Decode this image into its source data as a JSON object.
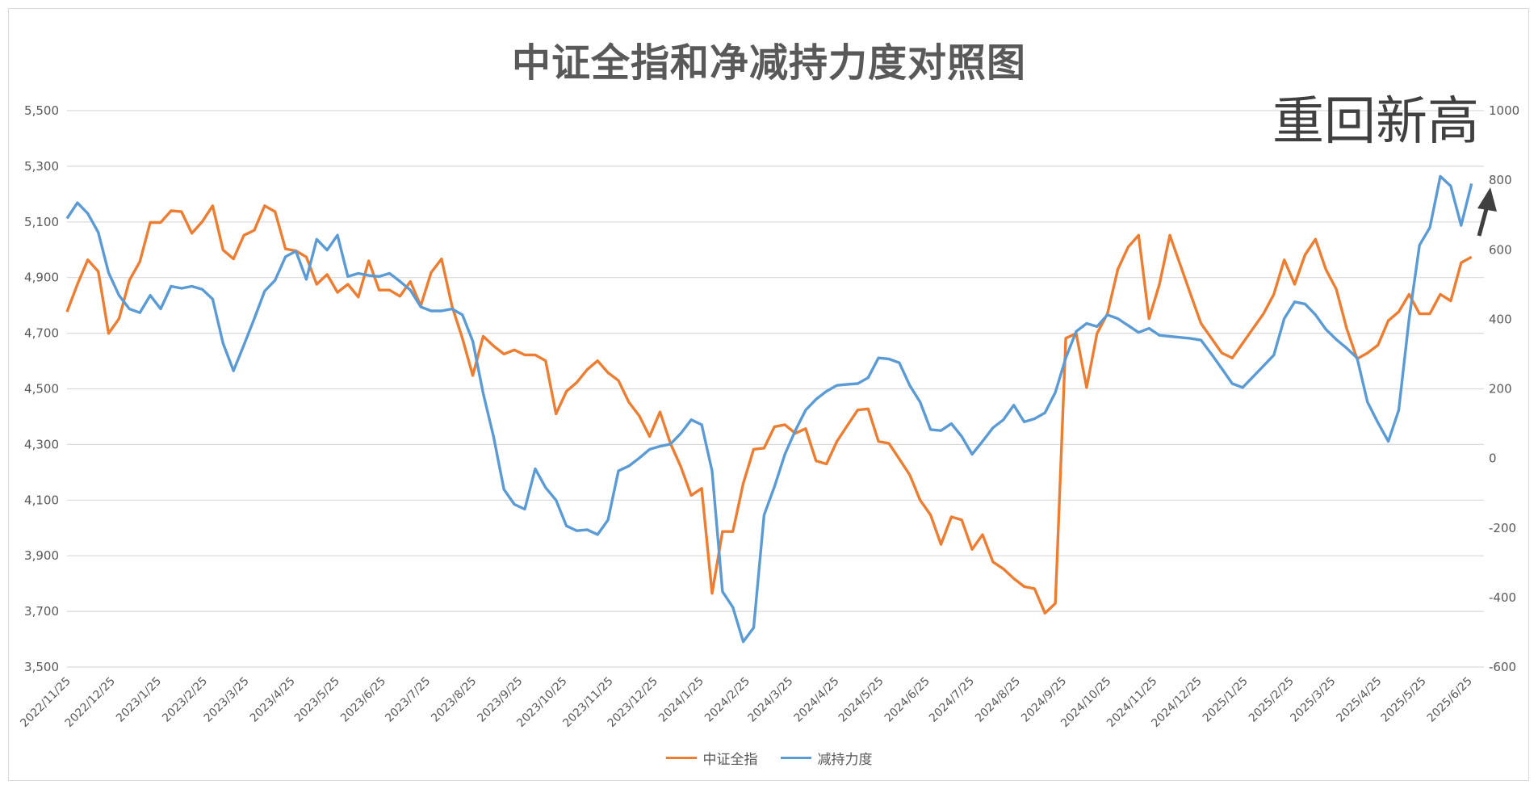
{
  "chart_data": {
    "type": "line",
    "title": "中证全指和净减持力度对照图",
    "annotation": "重回新高",
    "grid": true,
    "legend_position": "bottom",
    "y_left": {
      "ylim": [
        3500,
        5500
      ],
      "ticks": [
        "3,500",
        "3,700",
        "3,900",
        "4,100",
        "4,300",
        "4,500",
        "4,700",
        "4,900",
        "5,100",
        "5,300",
        "5,500"
      ]
    },
    "y_right": {
      "ylim": [
        -600,
        1000
      ],
      "ticks": [
        "-600",
        "-400",
        "-200",
        "0",
        "200",
        "400",
        "600",
        "800",
        "1000"
      ]
    },
    "xlim": [
      "2022/11/25",
      "2025/7/1"
    ],
    "x_tick_labels": [
      "2022/11/25",
      "2022/12/25",
      "2023/1/25",
      "2023/2/25",
      "2023/3/25",
      "2023/4/25",
      "2023/5/25",
      "2023/6/25",
      "2023/7/25",
      "2023/8/25",
      "2023/9/25",
      "2023/10/25",
      "2023/11/25",
      "2023/12/25",
      "2024/1/25",
      "2024/2/25",
      "2024/3/25",
      "2024/4/25",
      "2024/5/25",
      "2024/6/25",
      "2024/7/25",
      "2024/8/25",
      "2024/9/25",
      "2024/10/25",
      "2024/11/25",
      "2024/12/25",
      "2025/1/25",
      "2025/2/25",
      "2025/3/25",
      "2025/4/25",
      "2025/5/25",
      "2025/6/25"
    ],
    "x": [
      "2022/11/25",
      "2022/12/2",
      "2022/12/9",
      "2022/12/16",
      "2022/12/23",
      "2022/12/30",
      "2023/1/6",
      "2023/1/13",
      "2023/1/20",
      "2023/1/27",
      "2023/2/3",
      "2023/2/10",
      "2023/2/17",
      "2023/2/24",
      "2023/3/3",
      "2023/3/10",
      "2023/3/17",
      "2023/3/24",
      "2023/3/31",
      "2023/4/7",
      "2023/4/14",
      "2023/4/21",
      "2023/4/28",
      "2023/5/5",
      "2023/5/12",
      "2023/5/19",
      "2023/5/26",
      "2023/6/2",
      "2023/6/9",
      "2023/6/16",
      "2023/6/23",
      "2023/6/30",
      "2023/7/7",
      "2023/7/14",
      "2023/7/21",
      "2023/7/28",
      "2023/8/4",
      "2023/8/11",
      "2023/8/18",
      "2023/8/25",
      "2023/9/1",
      "2023/9/8",
      "2023/9/15",
      "2023/9/22",
      "2023/9/29",
      "2023/10/6",
      "2023/10/13",
      "2023/10/20",
      "2023/10/27",
      "2023/11/3",
      "2023/11/10",
      "2023/11/17",
      "2023/11/24",
      "2023/12/1",
      "2023/12/8",
      "2023/12/15",
      "2023/12/22",
      "2023/12/29",
      "2024/1/5",
      "2024/1/12",
      "2024/1/19",
      "2024/1/26",
      "2024/2/2",
      "2024/2/9",
      "2024/2/16",
      "2024/2/23",
      "2024/3/1",
      "2024/3/8",
      "2024/3/15",
      "2024/3/22",
      "2024/3/29",
      "2024/4/5",
      "2024/4/12",
      "2024/4/19",
      "2024/4/26",
      "2024/5/3",
      "2024/5/10",
      "2024/5/17",
      "2024/5/24",
      "2024/5/31",
      "2024/6/7",
      "2024/6/14",
      "2024/6/21",
      "2024/6/28",
      "2024/7/5",
      "2024/7/12",
      "2024/7/19",
      "2024/7/26",
      "2024/8/2",
      "2024/8/9",
      "2024/8/16",
      "2024/8/23",
      "2024/8/30",
      "2024/9/6",
      "2024/9/13",
      "2024/9/20",
      "2024/9/27",
      "2024/10/4",
      "2024/10/11",
      "2024/10/18",
      "2024/10/25",
      "2024/11/1",
      "2024/11/8",
      "2024/11/15",
      "2024/11/22",
      "2024/11/29",
      "2024/12/6",
      "2024/12/13",
      "2024/12/20",
      "2024/12/27",
      "2025/1/3",
      "2025/1/10",
      "2025/1/17",
      "2025/1/24",
      "2025/1/31",
      "2025/2/7",
      "2025/2/14",
      "2025/2/21",
      "2025/2/28",
      "2025/3/7",
      "2025/3/14",
      "2025/3/21",
      "2025/3/28",
      "2025/4/4",
      "2025/4/11",
      "2025/4/18",
      "2025/4/25",
      "2025/5/2",
      "2025/5/9",
      "2025/5/16",
      "2025/5/23",
      "2025/5/30",
      "2025/6/6",
      "2025/6/13",
      "2025/6/20",
      "2025/6/27"
    ],
    "series": [
      {
        "name": "中证全指",
        "axis": "left",
        "color": "#ED7D31",
        "values": [
          4777,
          4876,
          4964,
          4922,
          4699,
          4752,
          4890,
          4957,
          5098,
          5098,
          5140,
          5137,
          5059,
          5101,
          5158,
          4999,
          4967,
          5052,
          5070,
          5158,
          5137,
          5003,
          4996,
          4974,
          4876,
          4911,
          4847,
          4876,
          4830,
          4960,
          4855,
          4855,
          4833,
          4886,
          4798,
          4918,
          4967,
          4798,
          4682,
          4548,
          4689,
          4654,
          4625,
          4640,
          4622,
          4622,
          4601,
          4410,
          4491,
          4523,
          4569,
          4601,
          4558,
          4530,
          4452,
          4403,
          4329,
          4417,
          4304,
          4220,
          4117,
          4142,
          3765,
          3987,
          3987,
          4160,
          4283,
          4287,
          4364,
          4371,
          4340,
          4357,
          4241,
          4230,
          4311,
          4368,
          4424,
          4428,
          4311,
          4304,
          4248,
          4191,
          4100,
          4047,
          3941,
          4040,
          4029,
          3923,
          3976,
          3878,
          3853,
          3818,
          3789,
          3782,
          3694,
          3729,
          4682,
          4699,
          4505,
          4699,
          4770,
          4929,
          5010,
          5052,
          4752,
          4876,
          5052,
          4946,
          4840,
          4735,
          4682,
          4629,
          4611,
          4664,
          4717,
          4770,
          4840,
          4964,
          4876,
          4982,
          5038,
          4929,
          4858,
          4717,
          4608,
          4629,
          4657,
          4745,
          4777,
          4840,
          4770,
          4770,
          4840,
          4816,
          4953,
          4974
        ]
      },
      {
        "name": "减持力度",
        "axis": "right",
        "color": "#5B9BD5",
        "values": [
          690,
          735,
          704,
          650,
          534,
          469,
          430,
          419,
          469,
          430,
          495,
          489,
          495,
          486,
          458,
          331,
          252,
          326,
          402,
          481,
          512,
          580,
          596,
          515,
          630,
          599,
          642,
          523,
          532,
          526,
          523,
          532,
          509,
          484,
          436,
          424,
          424,
          430,
          413,
          337,
          187,
          63,
          -89,
          -132,
          -146,
          -30,
          -84,
          -120,
          -194,
          -208,
          -205,
          -219,
          -177,
          -36,
          -22,
          1,
          26,
          35,
          41,
          72,
          111,
          97,
          -36,
          -383,
          -428,
          -527,
          -487,
          -163,
          -81,
          12,
          80,
          139,
          170,
          193,
          210,
          213,
          215,
          232,
          289,
          286,
          275,
          210,
          162,
          83,
          80,
          100,
          63,
          12,
          49,
          88,
          111,
          153,
          105,
          114,
          131,
          190,
          289,
          365,
          388,
          379,
          413,
          402,
          382,
          362,
          374,
          354,
          351,
          348,
          345,
          340,
          300,
          258,
          215,
          204,
          235,
          266,
          297,
          402,
          450,
          444,
          413,
          371,
          342,
          317,
          289,
          162,
          103,
          49,
          139,
          402,
          613,
          664,
          811,
          783,
          670,
          790
        ]
      }
    ]
  }
}
